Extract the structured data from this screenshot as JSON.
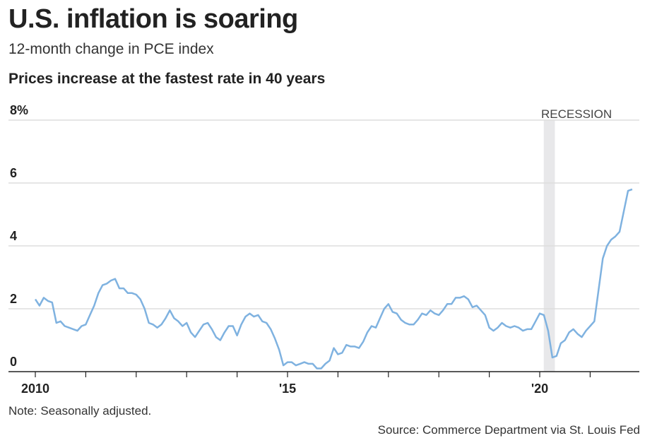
{
  "header": {
    "title": "U.S. inflation is soaring",
    "subtitle": "12-month change in PCE index",
    "subhead": "Prices increase at the fastest rate in 40 years"
  },
  "footer": {
    "note": "Note: Seasonally adjusted.",
    "source": "Source: Commerce Department via St. Louis Fed"
  },
  "colors": {
    "line": "#7fb2e0",
    "recession": "#e8e8ea",
    "grid": "#dddddd",
    "axis": "#222222"
  },
  "chart_data": {
    "type": "line",
    "title": "Prices increase at the fastest rate in 40 years",
    "xlabel": "",
    "ylabel": "12-month change in PCE index (%)",
    "ylim": [
      0,
      8
    ],
    "xlim": [
      2010,
      2022
    ],
    "y_ticks": [
      {
        "value": 0,
        "label": "0"
      },
      {
        "value": 2,
        "label": "2"
      },
      {
        "value": 4,
        "label": "4"
      },
      {
        "value": 6,
        "label": "6"
      },
      {
        "value": 8,
        "label": "8%"
      }
    ],
    "x_ticks": [
      {
        "value": 2010,
        "label": "2010"
      },
      {
        "value": 2015,
        "label": "'15"
      },
      {
        "value": 2020,
        "label": "'20"
      }
    ],
    "minor_x_ticks": [
      2011,
      2012,
      2013,
      2014,
      2016,
      2017,
      2018,
      2019,
      2021
    ],
    "grid": true,
    "recession": {
      "label": "RECESSION",
      "start": 2020.08,
      "end": 2020.3
    },
    "start": "2010-01",
    "frequency": "monthly",
    "values": [
      2.3,
      2.1,
      2.35,
      2.25,
      2.2,
      1.55,
      1.6,
      1.45,
      1.4,
      1.35,
      1.3,
      1.45,
      1.5,
      1.8,
      2.1,
      2.5,
      2.75,
      2.8,
      2.9,
      2.95,
      2.65,
      2.65,
      2.5,
      2.5,
      2.45,
      2.3,
      2.0,
      1.55,
      1.5,
      1.4,
      1.5,
      1.7,
      1.95,
      1.7,
      1.6,
      1.45,
      1.55,
      1.25,
      1.1,
      1.3,
      1.5,
      1.55,
      1.35,
      1.1,
      1.0,
      1.25,
      1.45,
      1.45,
      1.15,
      1.5,
      1.75,
      1.85,
      1.75,
      1.8,
      1.6,
      1.55,
      1.35,
      1.05,
      0.7,
      0.2,
      0.3,
      0.3,
      0.2,
      0.25,
      0.3,
      0.25,
      0.25,
      0.1,
      0.1,
      0.25,
      0.35,
      0.75,
      0.55,
      0.6,
      0.85,
      0.8,
      0.8,
      0.75,
      0.95,
      1.25,
      1.45,
      1.4,
      1.7,
      2.0,
      2.15,
      1.9,
      1.85,
      1.65,
      1.55,
      1.5,
      1.5,
      1.65,
      1.85,
      1.8,
      1.95,
      1.85,
      1.8,
      1.95,
      2.15,
      2.15,
      2.35,
      2.35,
      2.4,
      2.3,
      2.05,
      2.1,
      1.95,
      1.8,
      1.4,
      1.3,
      1.4,
      1.55,
      1.45,
      1.4,
      1.45,
      1.4,
      1.3,
      1.35,
      1.35,
      1.6,
      1.85,
      1.8,
      1.3,
      0.45,
      0.5,
      0.9,
      1.0,
      1.25,
      1.35,
      1.2,
      1.1,
      1.3,
      1.45,
      1.6,
      2.6,
      3.6,
      4.0,
      4.2,
      4.3,
      4.45,
      5.1,
      5.75,
      5.8
    ]
  }
}
